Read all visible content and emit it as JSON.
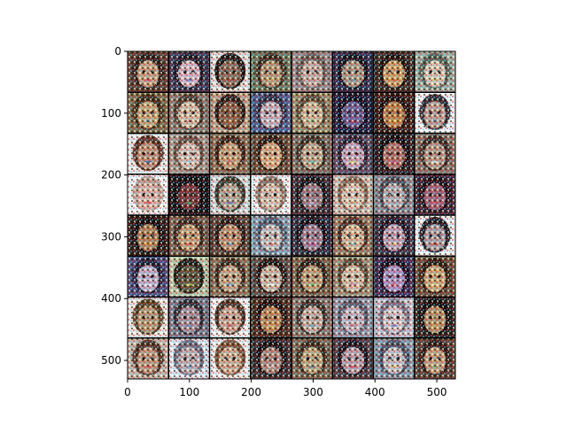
{
  "figure": {
    "xticks": [
      "0",
      "100",
      "200",
      "300",
      "400",
      "500"
    ],
    "yticks": [
      "0",
      "100",
      "200",
      "300",
      "400",
      "500"
    ],
    "grid": {
      "rows": 8,
      "cols": 8
    },
    "image_extent": {
      "width": 530,
      "height": 530
    }
  },
  "colors": {
    "background": "#ffffff",
    "axes": "#000000",
    "cell_separator": "#000000"
  },
  "tiles": [
    [
      {
        "bg": "#5a3b2a",
        "face": "#c9a07a",
        "hair": "#2a1a12",
        "accent": "#d94a6a"
      },
      {
        "bg": "#3a3550",
        "face": "#d9b6c0",
        "hair": "#1a1620",
        "accent": "#4a7ad0"
      },
      {
        "bg": "#e8e0d8",
        "face": "#8a6a50",
        "hair": "#1a1410",
        "accent": "#b04040"
      },
      {
        "bg": "#6a7a5a",
        "face": "#b89a70",
        "hair": "#3a2a1a",
        "accent": "#d0c060"
      },
      {
        "bg": "#9a8a86",
        "face": "#c8aea0",
        "hair": "#6a5a50",
        "accent": "#c08a8a"
      },
      {
        "bg": "#2a2a4a",
        "face": "#b09a80",
        "hair": "#101018",
        "accent": "#50a0c0"
      },
      {
        "bg": "#3a2a20",
        "face": "#d0a060",
        "hair": "#1a1008",
        "accent": "#e06030"
      },
      {
        "bg": "#a0b0a0",
        "face": "#d8c8b0",
        "hair": "#506050",
        "accent": "#c0d060"
      }
    ],
    [
      {
        "bg": "#7a6a40",
        "face": "#c8a870",
        "hair": "#3a2a10",
        "accent": "#4090c0"
      },
      {
        "bg": "#8a7a6a",
        "face": "#d8c0a0",
        "hair": "#4a3a2a",
        "accent": "#a04050"
      },
      {
        "bg": "#c0a080",
        "face": "#8a5a3a",
        "hair": "#2a1a10",
        "accent": "#d09050"
      },
      {
        "bg": "#4a5a8a",
        "face": "#c8b0b8",
        "hair": "#2a2a40",
        "accent": "#e0e0f0"
      },
      {
        "bg": "#9a8a60",
        "face": "#d0b890",
        "hair": "#5a4a30",
        "accent": "#60a060"
      },
      {
        "bg": "#1a1a3a",
        "face": "#6a5a90",
        "hair": "#0a0a1a",
        "accent": "#d03040"
      },
      {
        "bg": "#3a1a10",
        "face": "#c08040",
        "hair": "#1a0a05",
        "accent": "#e0c040"
      },
      {
        "bg": "#f4f4f4",
        "face": "#c0a090",
        "hair": "#2a2a30",
        "accent": "#6080c0"
      }
    ],
    [
      {
        "bg": "#f0ece8",
        "face": "#c09070",
        "hair": "#5a3020",
        "accent": "#3050a0"
      },
      {
        "bg": "#a89888",
        "face": "#d8c0b0",
        "hair": "#6a5040",
        "accent": "#b0c0d0"
      },
      {
        "bg": "#8a6a4a",
        "face": "#c8a070",
        "hair": "#3a2010",
        "accent": "#d05050"
      },
      {
        "bg": "#6a4a30",
        "face": "#d8a878",
        "hair": "#2a1a0a",
        "accent": "#f0c080"
      },
      {
        "bg": "#7a6a58",
        "face": "#c0a888",
        "hair": "#3a3020",
        "accent": "#50b0a0"
      },
      {
        "bg": "#5a4a60",
        "face": "#c8a8b8",
        "hair": "#2a2030",
        "accent": "#e0d040"
      },
      {
        "bg": "#2a1a1a",
        "face": "#b07060",
        "hair": "#0a0505",
        "accent": "#d04080"
      },
      {
        "bg": "#8a7060",
        "face": "#b89880",
        "hair": "#3a2a20",
        "accent": "#e0e0e0"
      }
    ],
    [
      {
        "bg": "#fafafa",
        "face": "#e0b8a8",
        "hair": "#c0a090",
        "accent": "#e04040"
      },
      {
        "bg": "#101010",
        "face": "#703030",
        "hair": "#050505",
        "accent": "#30c050"
      },
      {
        "bg": "#d8dcd8",
        "face": "#b8a890",
        "hair": "#3a3a2a",
        "accent": "#4070c0"
      },
      {
        "bg": "#f4f2f0",
        "face": "#d8c0a8",
        "hair": "#8a7060",
        "accent": "#e0e0e0"
      },
      {
        "bg": "#3a2a30",
        "face": "#9a7a80",
        "hair": "#101010",
        "accent": "#c0c0e0"
      },
      {
        "bg": "#d0c0b0",
        "face": "#e0c8b0",
        "hair": "#8a6a50",
        "accent": "#c0a060"
      },
      {
        "bg": "#8a8a90",
        "face": "#b8b0b0",
        "hair": "#4a4a50",
        "accent": "#90a0b0"
      },
      {
        "bg": "#3a2030",
        "face": "#a06070",
        "hair": "#1a0a10",
        "accent": "#e05060"
      }
    ],
    [
      {
        "bg": "#2a1a10",
        "face": "#b08050",
        "hair": "#0a0505",
        "accent": "#e0a030"
      },
      {
        "bg": "#7a6048",
        "face": "#c8a070",
        "hair": "#3a2818",
        "accent": "#d04040"
      },
      {
        "bg": "#5a4030",
        "face": "#c09068",
        "hair": "#2a1a10",
        "accent": "#40a0d0"
      },
      {
        "bg": "#8aa0b0",
        "face": "#c8c0b8",
        "hair": "#4a5a6a",
        "accent": "#e06060"
      },
      {
        "bg": "#2a2a3a",
        "face": "#a08090",
        "hair": "#0a0a10",
        "accent": "#c040a0"
      },
      {
        "bg": "#9a7a5a",
        "face": "#d8b890",
        "hair": "#4a3020",
        "accent": "#60c0d0"
      },
      {
        "bg": "#3a3040",
        "face": "#c0a0b0",
        "hair": "#1a1020",
        "accent": "#e0d060"
      },
      {
        "bg": "#f0f0f0",
        "face": "#b0a0a0",
        "hair": "#1a1a20",
        "accent": "#c03030"
      }
    ],
    [
      {
        "bg": "#4a4a7a",
        "face": "#c0b0c8",
        "hair": "#1a1a30",
        "accent": "#e0e0f0"
      },
      {
        "bg": "#c0c8a0",
        "face": "#5a5030",
        "hair": "#1a1a10",
        "accent": "#d0d040"
      },
      {
        "bg": "#8a7050",
        "face": "#c8a880",
        "hair": "#3a2a18",
        "accent": "#4080c0"
      },
      {
        "bg": "#5a4a40",
        "face": "#d0b8a0",
        "hair": "#1a1008",
        "accent": "#f0f0f0"
      },
      {
        "bg": "#7a6040",
        "face": "#c0a070",
        "hair": "#2a2010",
        "accent": "#60b060"
      },
      {
        "bg": "#a09070",
        "face": "#d8c0a0",
        "hair": "#5a4a30",
        "accent": "#c05080"
      },
      {
        "bg": "#3a2a50",
        "face": "#b090c0",
        "hair": "#100818",
        "accent": "#e04040"
      },
      {
        "bg": "#6a4a30",
        "face": "#d0a870",
        "hair": "#2a1a0a",
        "accent": "#f0d090"
      }
    ],
    [
      {
        "bg": "#f0e8e0",
        "face": "#b89870",
        "hair": "#5a4020",
        "accent": "#c09050"
      },
      {
        "bg": "#7a7a8a",
        "face": "#a89098",
        "hair": "#2a2a30",
        "accent": "#6080b0"
      },
      {
        "bg": "#f4f0ec",
        "face": "#d0a890",
        "hair": "#4a3020",
        "accent": "#c04040"
      },
      {
        "bg": "#4a2a18",
        "face": "#c08850",
        "hair": "#1a0a05",
        "accent": "#e0c060"
      },
      {
        "bg": "#8a7868",
        "face": "#c8b0a0",
        "hair": "#3a3028",
        "accent": "#50a0b0"
      },
      {
        "bg": "#9a9aa8",
        "face": "#c8b8c0",
        "hair": "#5a5a68",
        "accent": "#d06060"
      },
      {
        "bg": "#c8c0c8",
        "face": "#d8c8c8",
        "hair": "#7a7080",
        "accent": "#6070c0"
      },
      {
        "bg": "#2a2018",
        "face": "#b89060",
        "hair": "#0a0805",
        "accent": "#e0a040"
      }
    ],
    [
      {
        "bg": "#c8b8a8",
        "face": "#c09878",
        "hair": "#4a3020",
        "accent": "#d05050"
      },
      {
        "bg": "#e0e8f0",
        "face": "#c0b0b0",
        "hair": "#6a6a7a",
        "accent": "#50a0d0"
      },
      {
        "bg": "#f0ece8",
        "face": "#d0b090",
        "hair": "#7a5030",
        "accent": "#c08060"
      },
      {
        "bg": "#3a2a2a",
        "face": "#b08878",
        "hair": "#100a0a",
        "accent": "#e0e0e0"
      },
      {
        "bg": "#7a6a50",
        "face": "#c0a878",
        "hair": "#3a2a18",
        "accent": "#4080a0"
      },
      {
        "bg": "#4a3a40",
        "face": "#c0a0a8",
        "hair": "#1a1018",
        "accent": "#d04060"
      },
      {
        "bg": "#8a9aa8",
        "face": "#c8c0c0",
        "hair": "#4a5060",
        "accent": "#e0d070"
      },
      {
        "bg": "#5a4030",
        "face": "#c8a078",
        "hair": "#2a1810",
        "accent": "#60c080"
      }
    ]
  ]
}
